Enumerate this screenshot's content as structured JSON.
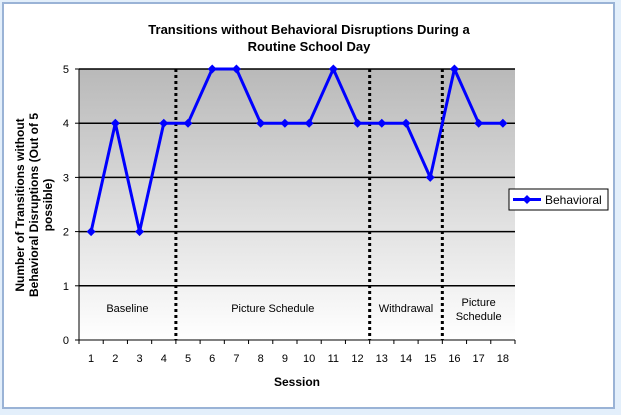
{
  "chart_data": {
    "type": "line",
    "title_lines": [
      "Transitions without Behavioral Disruptions During a",
      "Routine School Day"
    ],
    "xlabel": "Session",
    "ylabel_lines": [
      "Number of Transitions without",
      "Behavioral Disruptions (Out of 5",
      "possible)"
    ],
    "x": [
      1,
      2,
      3,
      4,
      5,
      6,
      7,
      8,
      9,
      10,
      11,
      12,
      13,
      14,
      15,
      16,
      17,
      18
    ],
    "ylim": [
      0,
      5
    ],
    "yticks": [
      0,
      1,
      2,
      3,
      4,
      5
    ],
    "grid": true,
    "legend_position": "right",
    "series": [
      {
        "name": "Behavioral",
        "color": "#0000ff",
        "values": [
          2,
          4,
          2,
          4,
          4,
          5,
          5,
          4,
          4,
          4,
          5,
          4,
          4,
          4,
          3,
          5,
          4,
          4
        ]
      }
    ],
    "phases": [
      {
        "lines": [
          "Baseline"
        ],
        "start": 0.5,
        "end": 4.5
      },
      {
        "lines": [
          "Picture Schedule"
        ],
        "start": 4.5,
        "end": 12.5
      },
      {
        "lines": [
          "Withdrawal"
        ],
        "start": 12.5,
        "end": 15.5
      },
      {
        "lines": [
          "Picture",
          "Schedule"
        ],
        "start": 15.5,
        "end": 18.5
      }
    ],
    "phase_change_lines_after": [
      4,
      12,
      15
    ]
  }
}
